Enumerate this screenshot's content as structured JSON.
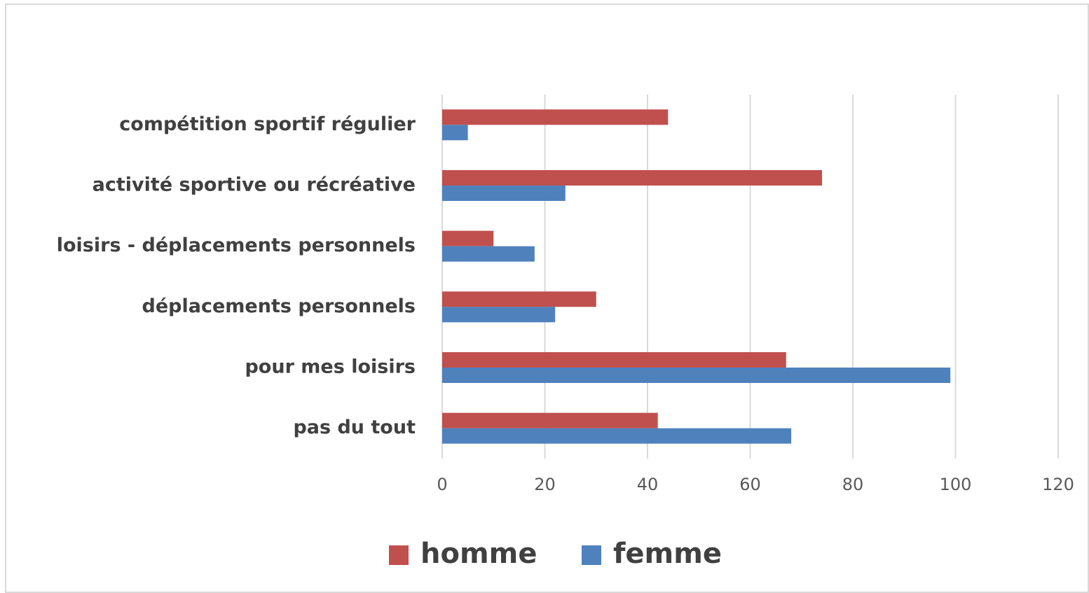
{
  "chart_data": {
    "type": "hbar",
    "categories": [
      "compétition sportif régulier",
      "activité sportive ou récréative",
      "loisirs - déplacements personnels",
      "déplacements personnels",
      "pour mes loisirs",
      "pas du tout"
    ],
    "series": [
      {
        "name": "homme",
        "color": "#c0504d",
        "values": [
          44,
          74,
          10,
          30,
          67,
          42
        ]
      },
      {
        "name": "femme",
        "color": "#4f81bd",
        "values": [
          5,
          24,
          18,
          22,
          99,
          68
        ]
      }
    ],
    "xlim": [
      0,
      120
    ],
    "xticks": [
      0,
      20,
      40,
      60,
      80,
      100,
      120
    ],
    "grid": true,
    "legend": "bottom"
  }
}
